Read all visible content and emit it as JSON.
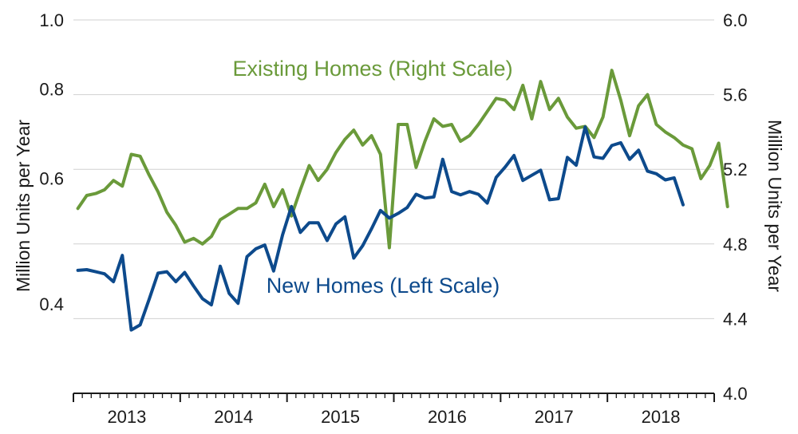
{
  "chart_data": {
    "type": "line",
    "x_axis": {
      "categories": [
        "2013",
        "2014",
        "2015",
        "2016",
        "2017",
        "2018"
      ],
      "start": "2013-01",
      "end": "2018-12"
    },
    "y_left": {
      "label": "Million Units  per Year",
      "range": [
        0.3,
        1.0
      ],
      "scale": "log",
      "ticks": [
        "1.0",
        "0.8",
        "0.6",
        "0.4"
      ],
      "tick_values": [
        1.0,
        0.8,
        0.6,
        0.4
      ]
    },
    "y_right": {
      "label": "Million Units  per Year",
      "range": [
        4.0,
        6.0
      ],
      "scale": "linear",
      "ticks": [
        "6.0",
        "5.6",
        "5.2",
        "4.8",
        "4.4",
        "4.0"
      ],
      "tick_values": [
        6.0,
        5.6,
        5.2,
        4.8,
        4.4,
        4.0
      ]
    },
    "grid": "horizontal",
    "series": [
      {
        "name": "Existing Homes (Right Scale)",
        "axis": "right",
        "color": "#6a9a3a",
        "start": "2013-01",
        "values": [
          4.99,
          5.06,
          5.07,
          5.09,
          5.14,
          5.11,
          5.28,
          5.27,
          5.17,
          5.08,
          4.97,
          4.9,
          4.81,
          4.83,
          4.8,
          4.84,
          4.93,
          4.96,
          4.99,
          4.99,
          5.02,
          5.12,
          5.0,
          5.09,
          4.95,
          5.09,
          5.22,
          5.14,
          5.2,
          5.29,
          5.36,
          5.41,
          5.33,
          5.38,
          5.28,
          4.78,
          5.44,
          5.44,
          5.21,
          5.35,
          5.47,
          5.43,
          5.44,
          5.35,
          5.38,
          5.44,
          5.51,
          5.58,
          5.57,
          5.52,
          5.65,
          5.47,
          5.67,
          5.52,
          5.58,
          5.48,
          5.42,
          5.43,
          5.37,
          5.48,
          5.73,
          5.57,
          5.38,
          5.54,
          5.6,
          5.44,
          5.4,
          5.37,
          5.33,
          5.31,
          5.15,
          5.22,
          5.34,
          5.0
        ]
      },
      {
        "name": "New Homes (Left Scale)",
        "axis": "left",
        "color": "#0d4a8c",
        "start": "2013-01",
        "values": [
          0.446,
          0.447,
          0.444,
          0.441,
          0.43,
          0.468,
          0.368,
          0.374,
          0.406,
          0.442,
          0.444,
          0.43,
          0.443,
          0.424,
          0.407,
          0.399,
          0.452,
          0.414,
          0.401,
          0.466,
          0.478,
          0.484,
          0.445,
          0.5,
          0.548,
          0.504,
          0.52,
          0.52,
          0.491,
          0.518,
          0.53,
          0.464,
          0.483,
          0.51,
          0.541,
          0.528,
          0.536,
          0.546,
          0.57,
          0.563,
          0.565,
          0.638,
          0.575,
          0.569,
          0.575,
          0.57,
          0.554,
          0.602,
          0.622,
          0.646,
          0.596,
          0.606,
          0.616,
          0.56,
          0.562,
          0.642,
          0.626,
          0.708,
          0.643,
          0.64,
          0.667,
          0.673,
          0.638,
          0.657,
          0.614,
          0.609,
          0.597,
          0.601,
          0.551
        ]
      }
    ],
    "annotations": [
      {
        "text": "Existing Homes (Right Scale)",
        "series": "Existing Homes (Right Scale)"
      },
      {
        "text": "New Homes (Left Scale)",
        "series": "New Homes (Left Scale)"
      }
    ]
  }
}
